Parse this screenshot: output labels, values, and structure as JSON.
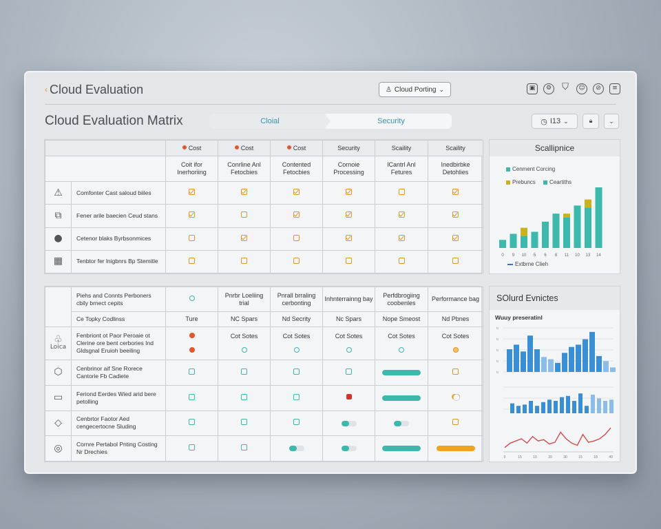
{
  "app_title": "Cloud Evaluation",
  "user_button": "Cloud Porting",
  "topbar_icons": [
    "box-icon",
    "settings-icon",
    "filter-icon",
    "user-icon",
    "compass-icon",
    "document-icon"
  ],
  "matrix_title": "Cloud Evaluation Matrix",
  "segments": [
    "Cloial",
    "Security"
  ],
  "version": "I13",
  "top_matrix": {
    "columns": [
      {
        "name": "Cost",
        "dot": true,
        "sub": "Coit ifor Inerhoriing"
      },
      {
        "name": "Cost",
        "dot": true,
        "sub": "Conrline Anl Fetocbies"
      },
      {
        "name": "Cost",
        "dot": true,
        "sub": "Contented Fetocbies"
      },
      {
        "name": "Security",
        "dot": false,
        "sub": "Cornoie Processing"
      },
      {
        "name": "Scaility",
        "dot": false,
        "sub": "lCantrl Anl Fetures"
      },
      {
        "name": "Scaility",
        "dot": false,
        "sub": "Inedbirbke Detohlies"
      }
    ],
    "rows": [
      {
        "icon": "warning-icon",
        "glyph": "⚠",
        "label": "Comfonter Cast saloud biiles",
        "cells": [
          "chk",
          "chk",
          "chk",
          "chk",
          "box",
          "chk"
        ]
      },
      {
        "icon": "puzzle-icon",
        "glyph": "⧉",
        "label": "Fener arile baecien Ceud stans",
        "cells": [
          "chk",
          "box",
          "chk",
          "chk",
          "chk",
          "chk"
        ]
      },
      {
        "icon": "leaf-icon",
        "glyph": "●",
        "label": "Cetenor blaks Byrbsonmices",
        "cells": [
          "box",
          "chk",
          "box",
          "chk",
          "chk",
          "chk"
        ]
      },
      {
        "icon": "calendar-icon",
        "glyph": "▦",
        "label": "Tenbtor fer lnigbnrs Bp Stemitle",
        "cells": [
          "box",
          "box",
          "box",
          "box",
          "box",
          "box"
        ]
      }
    ]
  },
  "bottom_matrix": {
    "header_label": "Piehs and Connts Perboners cbily brnect cepits",
    "sub_label": "Ce Topky Codlinss",
    "columns": [
      {
        "name": "",
        "sub": "Ture"
      },
      {
        "name": "Pnrbr Loeliing trial",
        "sub": "NC Spars"
      },
      {
        "name": "Pnrall brraling cerbonting",
        "sub": "Nd Secrity"
      },
      {
        "name": "Inhnterrainng bay",
        "sub": "Nc Spars"
      },
      {
        "name": "Perfdbrogiing coobenles",
        "sub": "Nope Smeost"
      },
      {
        "name": "Performance bag",
        "sub": "Nd Pbnes"
      }
    ],
    "rows": [
      {
        "icon": "lotion-icon",
        "glyph": "♧",
        "icon_text": "Loica",
        "label": "Fenbriont ot Paor Peroaie ot Clerine ore bent cerbories Ind Gldsgnal Eruioh beeiling",
        "cells": [
          "circ-red",
          "chip",
          "chip",
          "chip",
          "chip",
          "chip"
        ],
        "cells2": [
          "circ-red",
          "circ",
          "circ",
          "circ",
          "circ",
          "circ-or"
        ],
        "chip": "Cot Sotes"
      },
      {
        "icon": "cube-icon",
        "glyph": "⬡",
        "label": "Cenbrinor aif Sne Rorece Cantorie Fb Cadiete",
        "cells": [
          "cb",
          "cb",
          "cb",
          "cb",
          "bar:1",
          "cb-or"
        ]
      },
      {
        "icon": "card-icon",
        "glyph": "▭",
        "label": "Feriond Eerdes Wied arid bere petolling",
        "cells": [
          "cb",
          "cb",
          "cb",
          "red",
          "bar:1",
          "toggle"
        ]
      },
      {
        "icon": "shield-icon",
        "glyph": "◇",
        "label": "Cenbrtor Faotor Aed cengecertocne Sluding",
        "cells": [
          "cb",
          "cb",
          "cb",
          "bar:0.5",
          "bar:0.5",
          "cb-or"
        ]
      },
      {
        "icon": "gauge-icon",
        "glyph": "◎",
        "label": "Cornre Pertabol Pnting Costing Nr Drechies",
        "cells": [
          "cb",
          "cb",
          "bar:0.5",
          "bar:0.5",
          "bar:1",
          "bar-or:1"
        ]
      }
    ]
  },
  "side_top": {
    "title": "Scallipnice",
    "legend": [
      {
        "label": "Cenment Corcing",
        "color": "#3cb8ad"
      },
      {
        "label": "Prebuncs",
        "color": "#c9b21c"
      },
      {
        "label": "Ceartiths",
        "color": "#3cb8ad"
      }
    ],
    "footer": "Extbrne Clieh"
  },
  "side_bottom": {
    "title": "SOlurd Evnictes",
    "subtitle": "Wuuy preseratinl"
  },
  "chart_data": [
    {
      "type": "bar",
      "title": "Scallipnice",
      "categories": [
        "1",
        "2",
        "3",
        "4",
        "5",
        "6",
        "7",
        "8",
        "9",
        "10"
      ],
      "series": [
        {
          "name": "Cenment Corcing",
          "values": [
            8,
            14,
            12,
            16,
            26,
            34,
            30,
            42,
            40,
            60
          ],
          "color": "#3cb8ad"
        },
        {
          "name": "Prebuncs",
          "values": [
            0,
            0,
            8,
            0,
            0,
            0,
            4,
            0,
            8,
            0
          ],
          "color": "#c9b21c"
        }
      ],
      "ylim": [
        0,
        60
      ],
      "xticks": [
        "0",
        "9",
        "10",
        "5",
        "6",
        "8",
        "11",
        "10",
        "13",
        "14"
      ]
    },
    {
      "type": "bar",
      "title": "Wuuy preseratinl",
      "categories": [
        "1",
        "2",
        "3",
        "4",
        "5",
        "6",
        "7",
        "8",
        "9",
        "10",
        "11",
        "12",
        "13",
        "14",
        "15",
        "16"
      ],
      "values": [
        50,
        60,
        45,
        80,
        50,
        33,
        28,
        20,
        42,
        55,
        60,
        72,
        88,
        35,
        24,
        10
      ],
      "color": "#3a8fd4",
      "ylim": [
        0,
        100
      ]
    },
    {
      "type": "bar",
      "title": "",
      "categories": [
        "1",
        "2",
        "3",
        "4",
        "5",
        "6",
        "7",
        "8",
        "9",
        "10",
        "11",
        "12",
        "13",
        "14",
        "15",
        "16",
        "17"
      ],
      "values": [
        40,
        30,
        35,
        50,
        30,
        45,
        55,
        50,
        65,
        70,
        50,
        80,
        30,
        75,
        60,
        50,
        55
      ],
      "color": "#3a8fd4",
      "ylim": [
        0,
        100
      ]
    },
    {
      "type": "line",
      "title": "",
      "x": [
        0,
        1,
        2,
        3,
        4,
        5,
        6,
        7,
        8,
        9,
        10,
        11,
        12,
        13,
        14,
        15,
        16,
        17,
        18,
        19
      ],
      "y": [
        10,
        20,
        25,
        30,
        20,
        35,
        25,
        28,
        18,
        22,
        45,
        30,
        20,
        15,
        40,
        22,
        25,
        30,
        40,
        55
      ],
      "color": "#d24b4b",
      "xticks": [
        "0",
        "15",
        "10",
        "20",
        "30",
        "15",
        "18",
        "40"
      ],
      "ylim": [
        0,
        60
      ]
    }
  ]
}
